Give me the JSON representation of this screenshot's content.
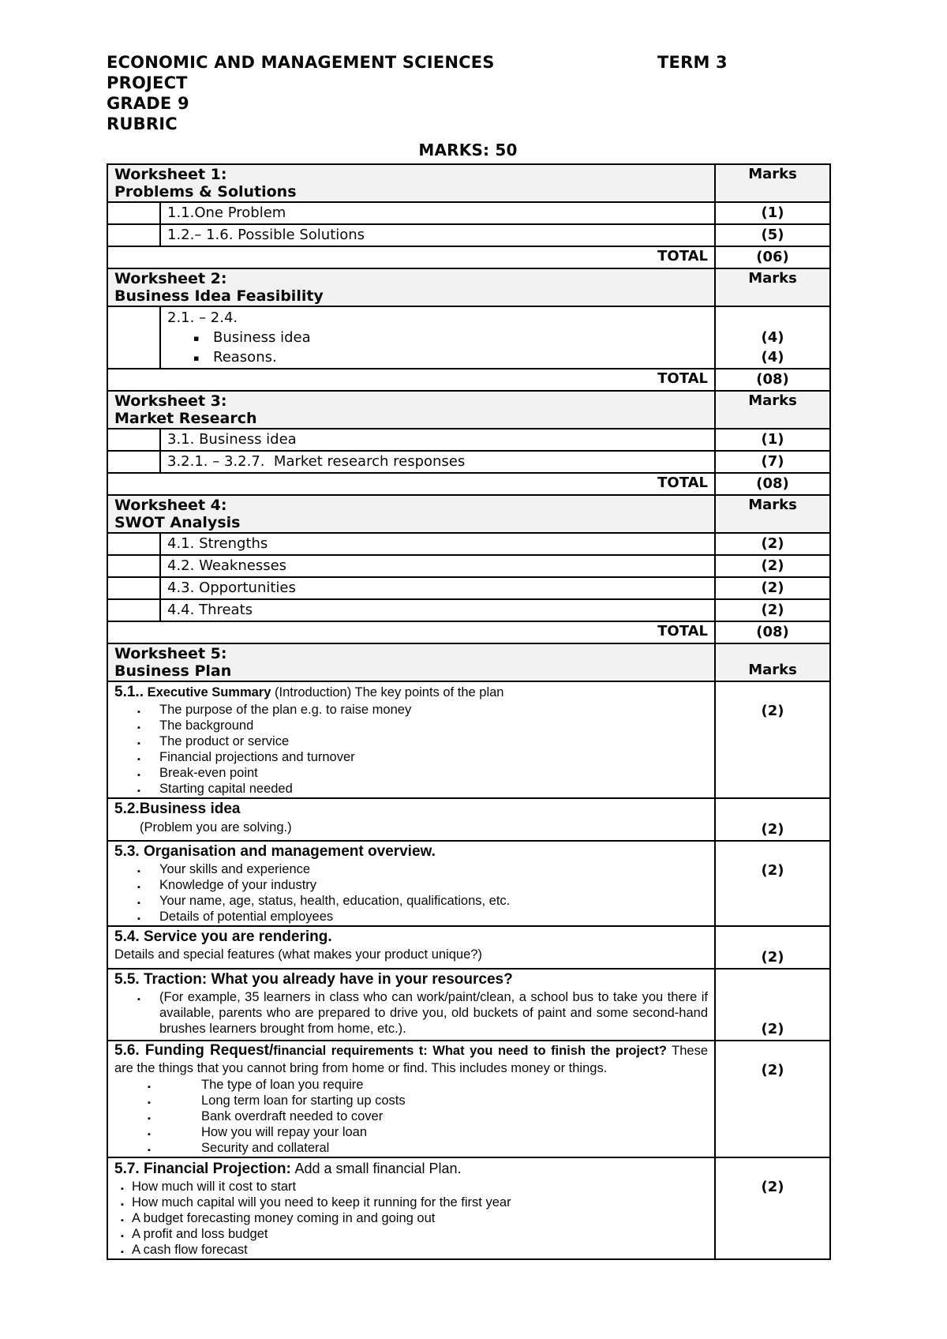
{
  "header": {
    "line1": "ECONOMIC AND MANAGEMENT SCIENCES",
    "term": "TERM 3",
    "line2": "PROJECT",
    "line3": "GRADE 9",
    "line4": "RUBRIC",
    "marks_line": "MARKS: 50"
  },
  "table": {
    "marks_header": "Marks",
    "total_label": "TOTAL",
    "ws1": {
      "title1": "Worksheet 1:",
      "title2": "Problems & Solutions",
      "items": [
        {
          "label": "1.1.One Problem",
          "marks": "(1)"
        },
        {
          "label": "1.2.– 1.6. Possible Solutions",
          "marks": "(5)"
        }
      ],
      "total": "(06)"
    },
    "ws2": {
      "title1": "Worksheet 2:",
      "title2": "Business Idea Feasibility",
      "range": "2.1. – 2.4.",
      "bullets": [
        "Business idea",
        "Reasons."
      ],
      "bullet_marks": [
        "(4)",
        "(4)"
      ],
      "total": "(08)"
    },
    "ws3": {
      "title1": "Worksheet 3:",
      "title2": "Market Research",
      "items": [
        {
          "label": "3.1. Business idea",
          "marks": "(1)"
        },
        {
          "label": "3.2.1. – 3.2.7.  Market research responses",
          "marks": "(7)"
        }
      ],
      "total": "(08)"
    },
    "ws4": {
      "title1": "Worksheet 4:",
      "title2": "SWOT Analysis",
      "items": [
        {
          "label": "4.1. Strengths",
          "marks": "(2)"
        },
        {
          "label": "4.2. Weaknesses",
          "marks": "(2)"
        },
        {
          "label": "4.3. Opportunities",
          "marks": "(2)"
        },
        {
          "label": "4.4. Threats",
          "marks": "(2)"
        }
      ],
      "total": "(08)"
    },
    "ws5": {
      "title1": "Worksheet 5:",
      "title2": "Business Plan",
      "s51": {
        "num": "5.1..",
        "bold": "Executive Summary",
        "rest": "(Introduction) The key points of the plan",
        "bullets": [
          "The purpose of the plan e.g. to raise money",
          "The background",
          "The product or service",
          "Financial projections and turnover",
          "Break-even point",
          "Starting capital needed"
        ],
        "marks": "(2)"
      },
      "s52": {
        "bold": "5.2.Business idea",
        "sub": "(Problem you are solving.)",
        "marks": "(2)"
      },
      "s53": {
        "bold": "5.3. Organisation and management overview.",
        "bullets": [
          "Your skills and experience",
          "Knowledge of your industry",
          "Your name, age, status, health, education, qualifications, etc.",
          "Details of potential employees"
        ],
        "marks": "(2)"
      },
      "s54": {
        "bold": "5.4. Service you are rendering.",
        "sub": "Details and special features (what makes your product unique?)",
        "marks": "(2)"
      },
      "s55": {
        "bold": "5.5. Traction: What you already have in your resources?",
        "bullet": "(For example, 35 learners in class who can work/paint/clean, a school bus to take you there if available, parents who are prepared to drive you, old buckets of paint and some second-hand brushes learners brought from home, etc.).",
        "marks": "(2)"
      },
      "s56": {
        "bold_big": "5.6. Funding Request/",
        "bold_small": "financial requirements t: What you need to finish the project?",
        "rest": "These are the things that you cannot bring from home or find. This includes money or things.",
        "bullets": [
          "The type of loan you require",
          "Long term loan for starting up costs",
          "Bank overdraft needed to cover",
          "How you will repay your loan",
          "Security and collateral"
        ],
        "marks": "(2)"
      },
      "s57": {
        "bold": "5.7. Financial Projection:",
        "rest": "Add a small financial Plan.",
        "bullets": [
          "How much will it cost to start",
          "How much capital will you need to keep it running for the first year",
          "A budget forecasting money coming in and going out",
          "A profit and loss budget",
          "A cash flow forecast"
        ],
        "marks": "(2)"
      }
    }
  }
}
